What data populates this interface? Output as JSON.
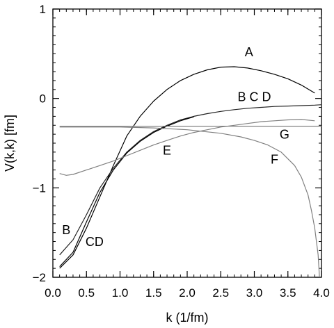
{
  "chart_data": {
    "type": "line",
    "title": "",
    "xlabel": "k  (1/fm)",
    "ylabel": "V(k,k)  [fm]",
    "xlim": [
      0,
      4
    ],
    "ylim": [
      -2,
      1
    ],
    "grid": false,
    "x_ticks": [
      "0.0",
      "0.5",
      "1.0",
      "1.5",
      "2.0",
      "2.5",
      "3.0",
      "3.5",
      "4.0"
    ],
    "y_ticks": [
      "−2",
      "−1",
      "0",
      "1"
    ],
    "x_tick_values": [
      0,
      0.5,
      1,
      1.5,
      2,
      2.5,
      3,
      3.5,
      4
    ],
    "y_tick_values": [
      -2,
      -1,
      0,
      1
    ],
    "series": [
      {
        "name": "A",
        "color": "#000000",
        "x": [
          0.1,
          0.3,
          0.5,
          0.7,
          0.9,
          1.1,
          1.3,
          1.5,
          1.7,
          1.9,
          2.1,
          2.3,
          2.5,
          2.7,
          2.9,
          3.1,
          3.3,
          3.5,
          3.7,
          3.9
        ],
        "y": [
          -1.9,
          -1.75,
          -1.45,
          -1.1,
          -0.75,
          -0.42,
          -0.2,
          -0.03,
          0.1,
          0.2,
          0.27,
          0.32,
          0.35,
          0.355,
          0.34,
          0.31,
          0.27,
          0.22,
          0.15,
          0.06
        ]
      },
      {
        "name": "B C D",
        "color": "#222222",
        "x": [
          0.1,
          0.3,
          0.5,
          0.7,
          0.9,
          1.1,
          1.3,
          1.5,
          1.7,
          1.9,
          2.1,
          2.3,
          2.5,
          2.7,
          2.9,
          3.1,
          3.3,
          3.5,
          3.7,
          3.9,
          4.0
        ],
        "y": [
          -1.75,
          -1.58,
          -1.3,
          -1.0,
          -0.78,
          -0.6,
          -0.47,
          -0.37,
          -0.3,
          -0.24,
          -0.2,
          -0.17,
          -0.145,
          -0.125,
          -0.11,
          -0.1,
          -0.09,
          -0.085,
          -0.08,
          -0.075,
          -0.07
        ]
      },
      {
        "name": "CD",
        "color": "#000000",
        "x": [
          0.1,
          0.3,
          0.5,
          0.7,
          0.9,
          1.1,
          1.3,
          1.5,
          1.7,
          1.9,
          2.1
        ],
        "y": [
          -1.88,
          -1.72,
          -1.38,
          -1.05,
          -0.8,
          -0.61,
          -0.48,
          -0.38,
          -0.31,
          -0.25,
          -0.205
        ]
      },
      {
        "name": "E",
        "color": "#808080",
        "x": [
          0.1,
          0.2,
          0.3,
          0.5,
          0.7,
          0.9,
          1.1,
          1.3,
          1.5,
          1.7,
          1.9,
          2.1,
          2.3,
          2.5,
          2.7,
          2.9,
          3.1,
          3.3,
          3.5,
          3.7,
          3.9
        ],
        "y": [
          -0.84,
          -0.86,
          -0.85,
          -0.8,
          -0.75,
          -0.7,
          -0.64,
          -0.58,
          -0.52,
          -0.47,
          -0.42,
          -0.38,
          -0.35,
          -0.32,
          -0.3,
          -0.28,
          -0.26,
          -0.25,
          -0.24,
          -0.235,
          -0.25
        ]
      },
      {
        "name": "F",
        "color": "#808080",
        "x": [
          0.1,
          0.5,
          1.0,
          1.5,
          2.0,
          2.5,
          2.8,
          3.0,
          3.2,
          3.4,
          3.6,
          3.7,
          3.8,
          3.85,
          3.9,
          3.95,
          3.97
        ],
        "y": [
          -0.32,
          -0.32,
          -0.32,
          -0.33,
          -0.35,
          -0.39,
          -0.43,
          -0.47,
          -0.52,
          -0.6,
          -0.75,
          -0.88,
          -1.08,
          -1.25,
          -1.45,
          -1.75,
          -2.0
        ]
      },
      {
        "name": "G",
        "color": "#808080",
        "x": [
          0.1,
          4.0
        ],
        "y": [
          -0.31,
          -0.31
        ]
      }
    ],
    "annotations": [
      {
        "text": "A",
        "x": 2.92,
        "y": 0.47
      },
      {
        "text": "B C D",
        "x": 3.0,
        "y": -0.03
      },
      {
        "text": "E",
        "x": 1.7,
        "y": -0.63
      },
      {
        "text": "G",
        "x": 3.45,
        "y": -0.45
      },
      {
        "text": "F",
        "x": 3.3,
        "y": -0.73
      },
      {
        "text": "B",
        "x": 0.2,
        "y": -1.52
      },
      {
        "text": "CD",
        "x": 0.62,
        "y": -1.65
      }
    ]
  }
}
